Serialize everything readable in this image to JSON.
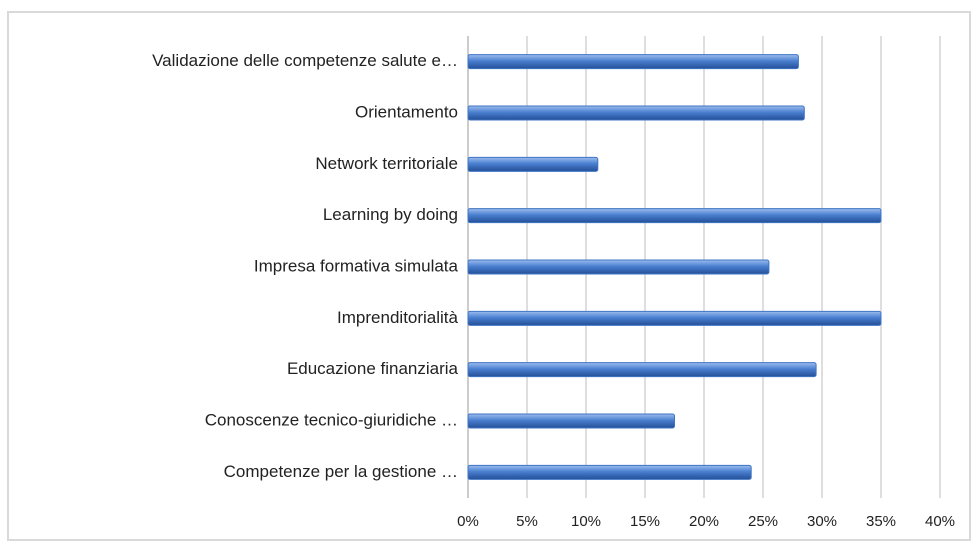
{
  "chart_data": {
    "type": "bar",
    "orientation": "horizontal",
    "categories": [
      "Validazione delle competenze salute e…",
      "Orientamento",
      "Network territoriale",
      "Learning by doing",
      "Impresa formativa simulata",
      "Imprenditorialità",
      "Educazione finanziaria",
      "Conoscenze tecnico-giuridiche …",
      "Competenze per la gestione …"
    ],
    "values": [
      28,
      28.5,
      11,
      35,
      25.5,
      35,
      29.5,
      17.5,
      24
    ],
    "color": "#3f74c4",
    "xlim": [
      0,
      40
    ],
    "xticks": [
      {
        "value": 0,
        "label": "0%"
      },
      {
        "value": 5,
        "label": "5%"
      },
      {
        "value": 10,
        "label": "10%"
      },
      {
        "value": 15,
        "label": "15%"
      },
      {
        "value": 20,
        "label": "20%"
      },
      {
        "value": 25,
        "label": "25%"
      },
      {
        "value": 30,
        "label": "30%"
      },
      {
        "value": 35,
        "label": "35%"
      },
      {
        "value": 40,
        "label": "40%"
      }
    ],
    "grid": true
  }
}
